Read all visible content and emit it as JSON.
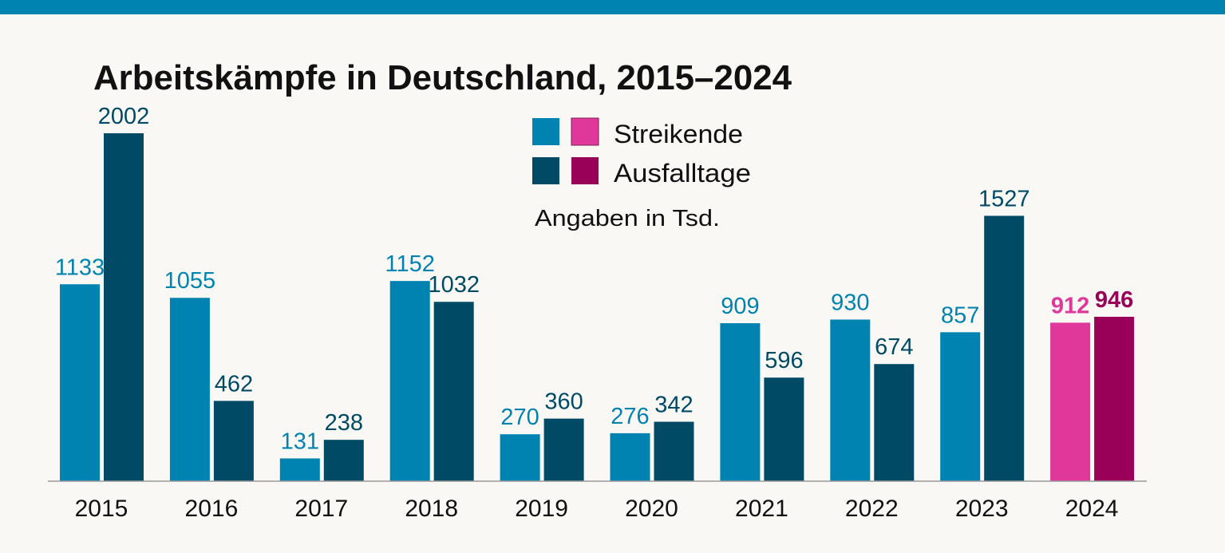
{
  "chart_data": {
    "type": "bar",
    "title": "Arbeitskämpfe in Deutschland, 2015–2024",
    "note": "Angaben in Tsd.",
    "categories": [
      "2015",
      "2016",
      "2017",
      "2018",
      "2019",
      "2020",
      "2021",
      "2022",
      "2023",
      "2024"
    ],
    "series": [
      {
        "name": "Streikende",
        "values": [
          1133,
          1055,
          131,
          1152,
          270,
          276,
          909,
          930,
          857,
          912
        ],
        "color": "#0083b0",
        "highlight_color": "#e0379a"
      },
      {
        "name": "Ausfalltage",
        "values": [
          2002,
          462,
          238,
          1032,
          360,
          342,
          596,
          674,
          1527,
          946
        ],
        "color": "#004a66",
        "highlight_color": "#990057"
      }
    ],
    "highlight_category": "2024",
    "ylim": [
      0,
      2002
    ],
    "grid": false,
    "legend_position": "top-center"
  }
}
